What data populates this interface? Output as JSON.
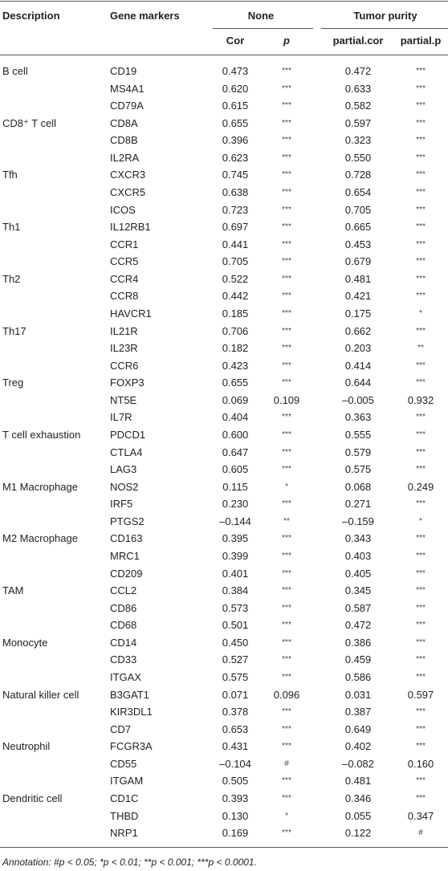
{
  "header": {
    "description": "Description",
    "gene_markers": "Gene markers",
    "none": "None",
    "tumor_purity": "Tumor purity",
    "cor": "Cor",
    "p": "p",
    "partial_cor": "partial.cor",
    "partial_p": "partial.p"
  },
  "groups": [
    {
      "description": "B cell",
      "rows": [
        [
          "CD19",
          "0.473",
          "***",
          "0.472",
          "***"
        ],
        [
          "MS4A1",
          "0.620",
          "***",
          "0.633",
          "***"
        ],
        [
          "CD79A",
          "0.615",
          "***",
          "0.582",
          "***"
        ]
      ]
    },
    {
      "description": "CD8⁺ T cell",
      "rows": [
        [
          "CD8A",
          "0.655",
          "***",
          "0.597",
          "***"
        ],
        [
          "CD8B",
          "0.396",
          "***",
          "0.323",
          "***"
        ],
        [
          "IL2RA",
          "0.623",
          "***",
          "0.550",
          "***"
        ]
      ]
    },
    {
      "description": "Tfh",
      "rows": [
        [
          "CXCR3",
          "0.745",
          "***",
          "0.728",
          "***"
        ],
        [
          "CXCR5",
          "0.638",
          "***",
          "0.654",
          "***"
        ],
        [
          "ICOS",
          "0.723",
          "***",
          "0.705",
          "***"
        ]
      ]
    },
    {
      "description": "Th1",
      "rows": [
        [
          "IL12RB1",
          "0.697",
          "***",
          "0.665",
          "***"
        ],
        [
          "CCR1",
          "0.441",
          "***",
          "0.453",
          "***"
        ],
        [
          "CCR5",
          "0.705",
          "***",
          "0.679",
          "***"
        ]
      ]
    },
    {
      "description": "Th2",
      "rows": [
        [
          "CCR4",
          "0.522",
          "***",
          "0.481",
          "***"
        ],
        [
          "CCR8",
          "0.442",
          "***",
          "0.421",
          "***"
        ],
        [
          "HAVCR1",
          "0.185",
          "***",
          "0.175",
          "*"
        ]
      ]
    },
    {
      "description": "Th17",
      "rows": [
        [
          "IL21R",
          "0.706",
          "***",
          "0.662",
          "***"
        ],
        [
          "IL23R",
          "0.182",
          "***",
          "0.203",
          "**"
        ],
        [
          "CCR6",
          "0.423",
          "***",
          "0.414",
          "***"
        ]
      ]
    },
    {
      "description": "Treg",
      "rows": [
        [
          "FOXP3",
          "0.655",
          "***",
          "0.644",
          "***"
        ],
        [
          "NT5E",
          "0.069",
          "0.109",
          "–0.005",
          "0.932"
        ],
        [
          "IL7R",
          "0.404",
          "***",
          "0.363",
          "***"
        ]
      ]
    },
    {
      "description": "T cell exhaustion",
      "rows": [
        [
          "PDCD1",
          "0.600",
          "***",
          "0.555",
          "***"
        ],
        [
          "CTLA4",
          "0.647",
          "***",
          "0.579",
          "***"
        ],
        [
          "LAG3",
          "0.605",
          "***",
          "0.575",
          "***"
        ]
      ]
    },
    {
      "description": "M1 Macrophage",
      "rows": [
        [
          "NOS2",
          "0.115",
          "*",
          "0.068",
          "0.249"
        ],
        [
          "IRF5",
          "0.230",
          "***",
          "0.271",
          "***"
        ],
        [
          "PTGS2",
          "–0.144",
          "**",
          "–0.159",
          "*"
        ]
      ]
    },
    {
      "description": "M2 Macrophage",
      "rows": [
        [
          "CD163",
          "0.395",
          "***",
          "0.343",
          "***"
        ],
        [
          "MRC1",
          "0.399",
          "***",
          "0.403",
          "***"
        ],
        [
          "CD209",
          "0.401",
          "***",
          "0.405",
          "***"
        ]
      ]
    },
    {
      "description": "TAM",
      "rows": [
        [
          "CCL2",
          "0.384",
          "***",
          "0.345",
          "***"
        ],
        [
          "CD86",
          "0.573",
          "***",
          "0.587",
          "***"
        ],
        [
          "CD68",
          "0.501",
          "***",
          "0.472",
          "***"
        ]
      ]
    },
    {
      "description": "Monocyte",
      "rows": [
        [
          "CD14",
          "0.450",
          "***",
          "0.386",
          "***"
        ],
        [
          "CD33",
          "0.527",
          "***",
          "0.459",
          "***"
        ],
        [
          "ITGAX",
          "0.575",
          "***",
          "0.586",
          "***"
        ]
      ]
    },
    {
      "description": "Natural killer cell",
      "rows": [
        [
          "B3GAT1",
          "0.071",
          "0.096",
          "0.031",
          "0.597"
        ],
        [
          "KIR3DL1",
          "0.378",
          "***",
          "0.387",
          "***"
        ],
        [
          "CD7",
          "0.653",
          "***",
          "0.649",
          "***"
        ]
      ]
    },
    {
      "description": "Neutrophil",
      "rows": [
        [
          "FCGR3A",
          "0.431",
          "***",
          "0.402",
          "***"
        ],
        [
          "CD55",
          "–0.104",
          "#",
          "–0.082",
          "0.160"
        ],
        [
          "ITGAM",
          "0.505",
          "***",
          "0.481",
          "***"
        ]
      ]
    },
    {
      "description": "Dendritic cell",
      "rows": [
        [
          "CD1C",
          "0.393",
          "***",
          "0.346",
          "***"
        ],
        [
          "THBD",
          "0.130",
          "*",
          "0.055",
          "0.347"
        ],
        [
          "NRP1",
          "0.169",
          "***",
          "0.122",
          "#"
        ]
      ]
    }
  ],
  "annotation": "Annotation: #p < 0.05; *p < 0.01; **p < 0.001; ***p < 0.0001."
}
